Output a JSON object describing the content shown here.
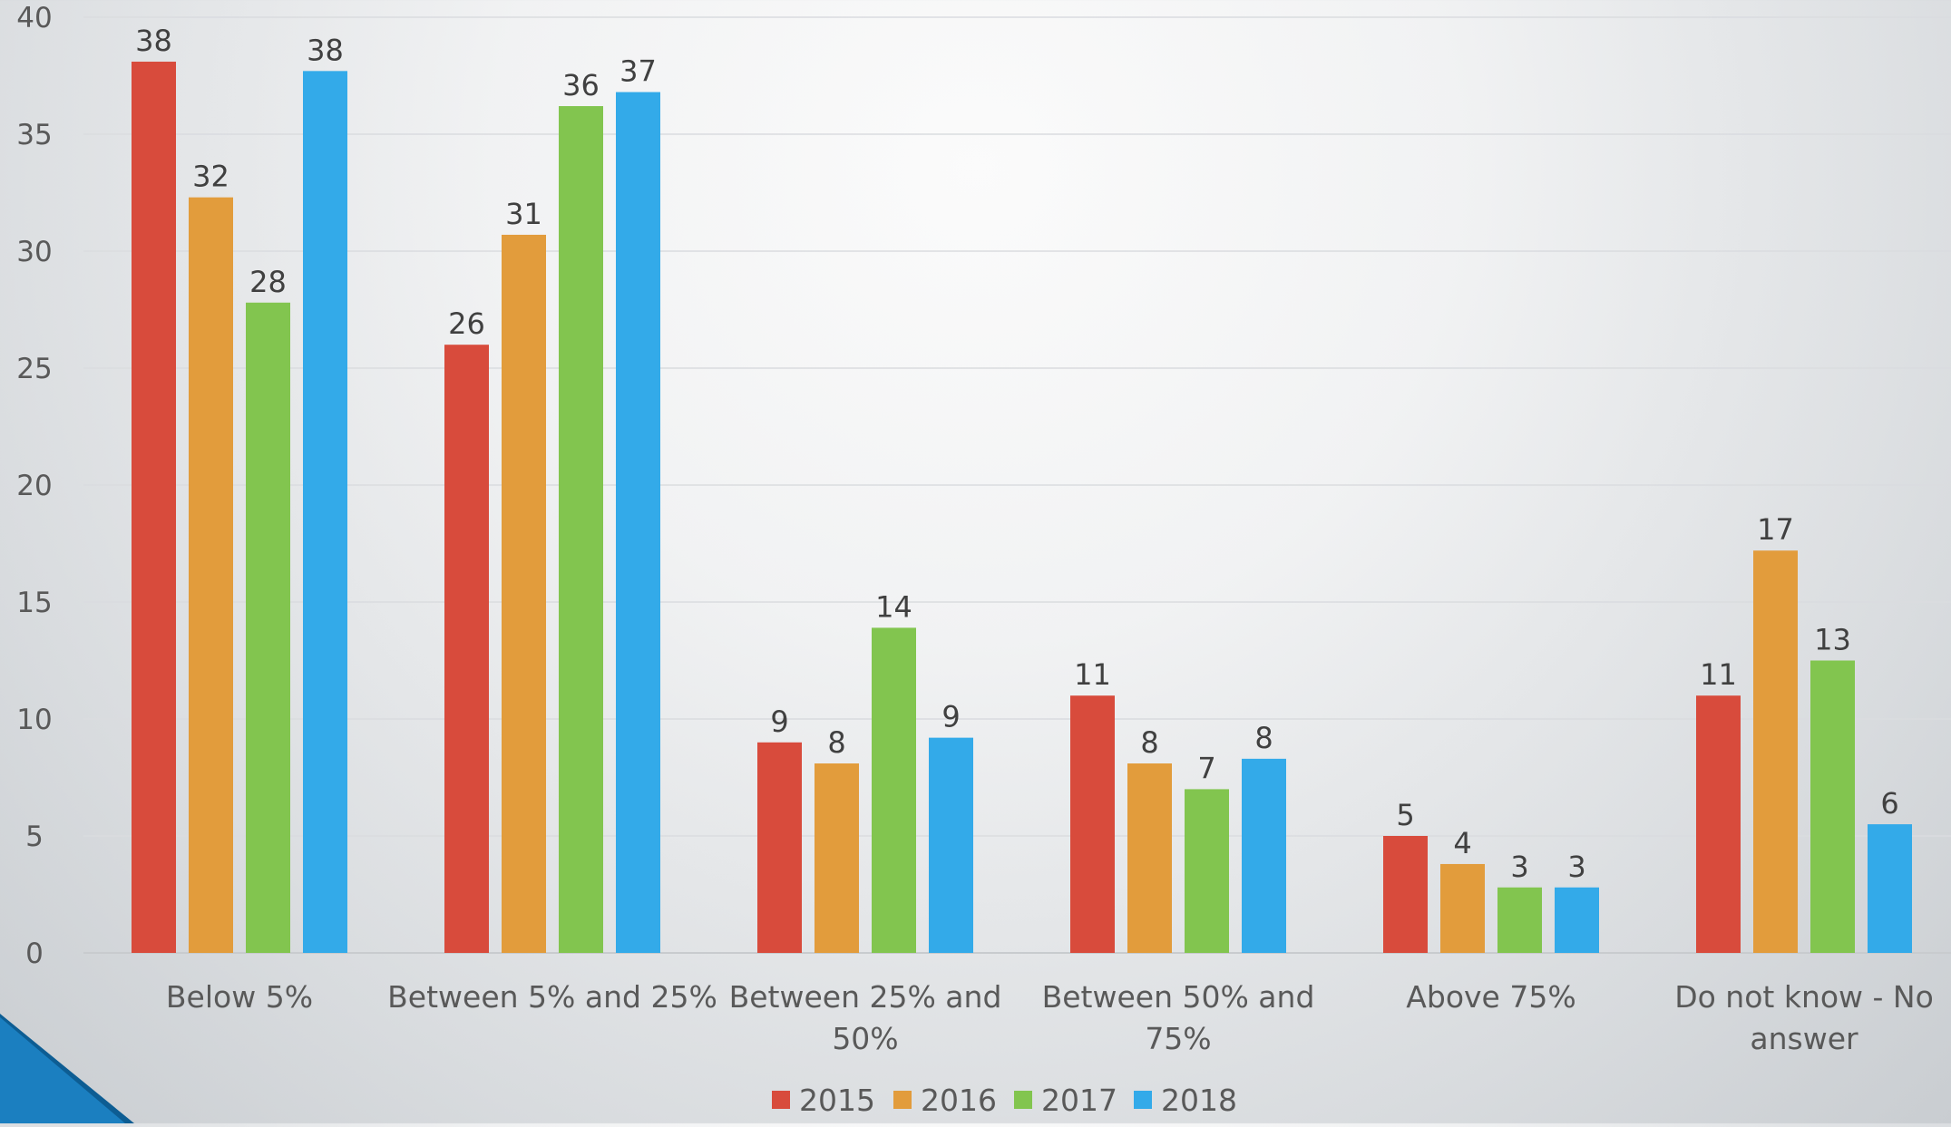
{
  "chart_data": {
    "type": "bar",
    "title": "",
    "xlabel": "",
    "ylabel": "",
    "ylim": [
      0,
      40
    ],
    "yticks": [
      "0",
      "5",
      "10",
      "15",
      "20",
      "25",
      "30",
      "35",
      "40"
    ],
    "grid": true,
    "legend_position": "bottom",
    "categories": [
      [
        "Below 5%"
      ],
      [
        "Between 5% and 25%"
      ],
      [
        "Between 25% and",
        "50%"
      ],
      [
        "Between 50% and",
        "75%"
      ],
      [
        "Above 75%"
      ],
      [
        "Do not know - No",
        "answer"
      ]
    ],
    "series": [
      {
        "name": "2015",
        "color": "#d84b3c",
        "values": [
          38.1,
          26.0,
          9.0,
          11.0,
          5.0,
          11.0
        ],
        "labels": [
          "38",
          "26",
          "9",
          "11",
          "5",
          "11"
        ]
      },
      {
        "name": "2016",
        "color": "#e29c3c",
        "values": [
          32.3,
          30.7,
          8.1,
          8.1,
          3.8,
          17.2
        ],
        "labels": [
          "32",
          "31",
          "8",
          "8",
          "4",
          "17"
        ]
      },
      {
        "name": "2017",
        "color": "#82c54f",
        "values": [
          27.8,
          36.2,
          13.9,
          7.0,
          2.8,
          12.5
        ],
        "labels": [
          "28",
          "36",
          "14",
          "7",
          "3",
          "13"
        ]
      },
      {
        "name": "2018",
        "color": "#33aae9",
        "values": [
          37.7,
          36.8,
          9.2,
          8.3,
          2.8,
          5.5
        ],
        "labels": [
          "38",
          "37",
          "9",
          "8",
          "3",
          "6"
        ]
      }
    ]
  },
  "decor": {
    "corner_color": "#1b7fc0",
    "corner_dark": "#0d5d93"
  }
}
